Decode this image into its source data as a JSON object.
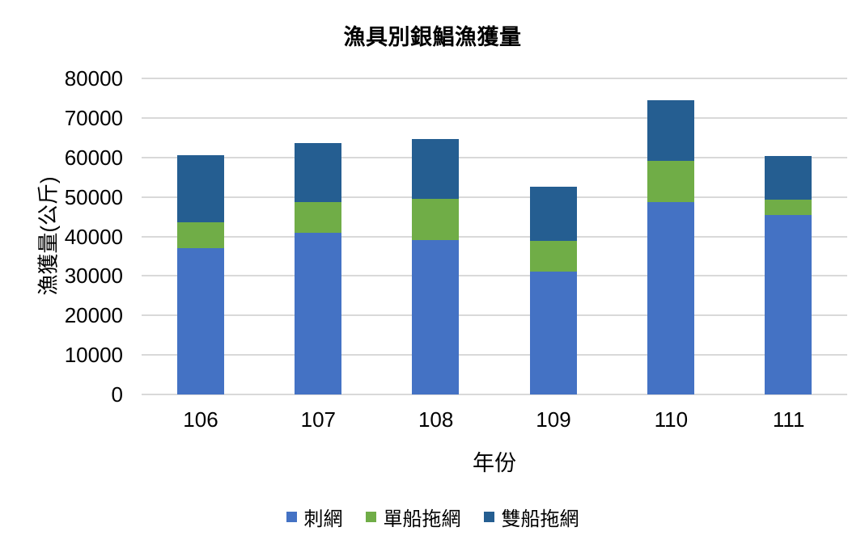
{
  "title": "漁具別銀鯧漁獲量",
  "x_axis_title": "年份",
  "y_axis_title": "漁獲量(公斤)",
  "chart_data": {
    "type": "bar",
    "stacked": true,
    "title": "漁具別銀鯧漁獲量",
    "xlabel": "年份",
    "ylabel": "漁獲量(公斤)",
    "categories": [
      "106",
      "107",
      "108",
      "109",
      "110",
      "111"
    ],
    "series": [
      {
        "name": "刺網",
        "color": "#4472C4",
        "values": [
          37000,
          41000,
          39000,
          31200,
          48600,
          45400
        ]
      },
      {
        "name": "單船拖網",
        "color": "#70AD47",
        "values": [
          6600,
          7800,
          10500,
          7700,
          10600,
          4000
        ]
      },
      {
        "name": "雙船拖網",
        "color": "#255E91",
        "values": [
          17000,
          14800,
          15200,
          13700,
          15300,
          11000
        ]
      }
    ],
    "ylim": [
      0,
      80000
    ],
    "ytick_step": 10000,
    "ytick_labels": [
      "0",
      "10000",
      "20000",
      "30000",
      "40000",
      "50000",
      "60000",
      "70000",
      "80000"
    ],
    "grid": "horizontal",
    "legend_position": "bottom"
  },
  "colors": {
    "gridline": "#D9D9D9",
    "background": "#FFFFFF",
    "text": "#000000"
  }
}
